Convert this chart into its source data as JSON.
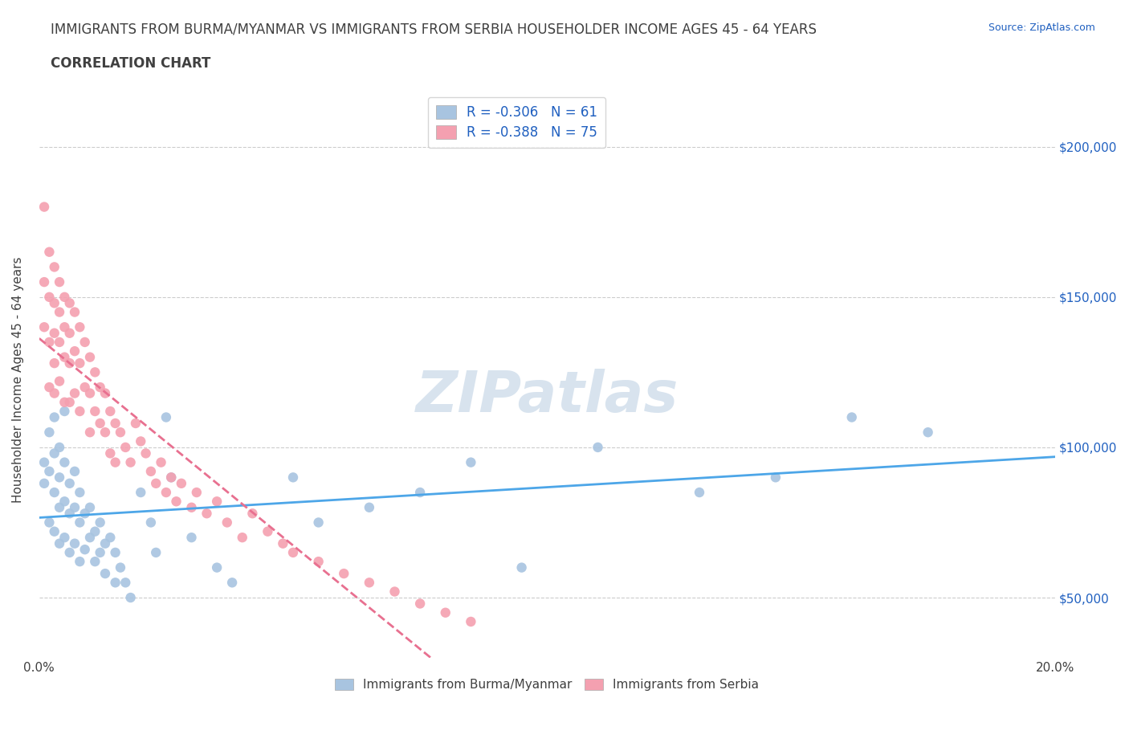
{
  "title_line1": "IMMIGRANTS FROM BURMA/MYANMAR VS IMMIGRANTS FROM SERBIA HOUSEHOLDER INCOME AGES 45 - 64 YEARS",
  "title_line2": "CORRELATION CHART",
  "source_text": "Source: ZipAtlas.com",
  "xlabel": "",
  "ylabel": "Householder Income Ages 45 - 64 years",
  "xlim": [
    0.0,
    0.2
  ],
  "ylim": [
    30000,
    215000
  ],
  "xticks": [
    0.0,
    0.04,
    0.08,
    0.12,
    0.16,
    0.2
  ],
  "xtick_labels": [
    "0.0%",
    "",
    "",
    "",
    "",
    "20.0%"
  ],
  "ytick_labels": [
    "$50,000",
    "$100,000",
    "$150,000",
    "$200,000"
  ],
  "yticks": [
    50000,
    100000,
    150000,
    200000
  ],
  "burma_R": -0.306,
  "burma_N": 61,
  "serbia_R": -0.388,
  "serbia_N": 75,
  "burma_color": "#a8c4e0",
  "serbia_color": "#f4a0b0",
  "burma_line_color": "#4da6e8",
  "serbia_line_color": "#e87090",
  "grid_color": "#cccccc",
  "background_color": "#ffffff",
  "watermark_text": "ZIPatlas",
  "watermark_color": "#c8d8e8",
  "title_color": "#404040",
  "legend_r_color": "#2060c0",
  "legend_n_color": "#2060c0",
  "burma_x": [
    0.001,
    0.001,
    0.002,
    0.002,
    0.002,
    0.003,
    0.003,
    0.003,
    0.003,
    0.004,
    0.004,
    0.004,
    0.004,
    0.005,
    0.005,
    0.005,
    0.005,
    0.006,
    0.006,
    0.006,
    0.007,
    0.007,
    0.007,
    0.008,
    0.008,
    0.008,
    0.009,
    0.009,
    0.01,
    0.01,
    0.011,
    0.011,
    0.012,
    0.012,
    0.013,
    0.013,
    0.014,
    0.015,
    0.015,
    0.016,
    0.017,
    0.018,
    0.02,
    0.022,
    0.023,
    0.025,
    0.026,
    0.03,
    0.035,
    0.038,
    0.05,
    0.055,
    0.065,
    0.075,
    0.085,
    0.095,
    0.11,
    0.13,
    0.145,
    0.16,
    0.175
  ],
  "burma_y": [
    95000,
    88000,
    105000,
    92000,
    75000,
    110000,
    98000,
    85000,
    72000,
    100000,
    90000,
    80000,
    68000,
    112000,
    95000,
    82000,
    70000,
    88000,
    78000,
    65000,
    92000,
    80000,
    68000,
    85000,
    75000,
    62000,
    78000,
    66000,
    80000,
    70000,
    72000,
    62000,
    75000,
    65000,
    68000,
    58000,
    70000,
    65000,
    55000,
    60000,
    55000,
    50000,
    85000,
    75000,
    65000,
    110000,
    90000,
    70000,
    60000,
    55000,
    90000,
    75000,
    80000,
    85000,
    95000,
    60000,
    100000,
    85000,
    90000,
    110000,
    105000
  ],
  "serbia_x": [
    0.001,
    0.001,
    0.001,
    0.002,
    0.002,
    0.002,
    0.002,
    0.003,
    0.003,
    0.003,
    0.003,
    0.003,
    0.004,
    0.004,
    0.004,
    0.004,
    0.005,
    0.005,
    0.005,
    0.005,
    0.006,
    0.006,
    0.006,
    0.006,
    0.007,
    0.007,
    0.007,
    0.008,
    0.008,
    0.008,
    0.009,
    0.009,
    0.01,
    0.01,
    0.01,
    0.011,
    0.011,
    0.012,
    0.012,
    0.013,
    0.013,
    0.014,
    0.014,
    0.015,
    0.015,
    0.016,
    0.017,
    0.018,
    0.019,
    0.02,
    0.021,
    0.022,
    0.023,
    0.024,
    0.025,
    0.026,
    0.027,
    0.028,
    0.03,
    0.031,
    0.033,
    0.035,
    0.037,
    0.04,
    0.042,
    0.045,
    0.048,
    0.05,
    0.055,
    0.06,
    0.065,
    0.07,
    0.075,
    0.08,
    0.085
  ],
  "serbia_y": [
    180000,
    155000,
    140000,
    165000,
    150000,
    135000,
    120000,
    160000,
    148000,
    138000,
    128000,
    118000,
    155000,
    145000,
    135000,
    122000,
    150000,
    140000,
    130000,
    115000,
    148000,
    138000,
    128000,
    115000,
    145000,
    132000,
    118000,
    140000,
    128000,
    112000,
    135000,
    120000,
    130000,
    118000,
    105000,
    125000,
    112000,
    120000,
    108000,
    118000,
    105000,
    112000,
    98000,
    108000,
    95000,
    105000,
    100000,
    95000,
    108000,
    102000,
    98000,
    92000,
    88000,
    95000,
    85000,
    90000,
    82000,
    88000,
    80000,
    85000,
    78000,
    82000,
    75000,
    70000,
    78000,
    72000,
    68000,
    65000,
    62000,
    58000,
    55000,
    52000,
    48000,
    45000,
    42000
  ]
}
